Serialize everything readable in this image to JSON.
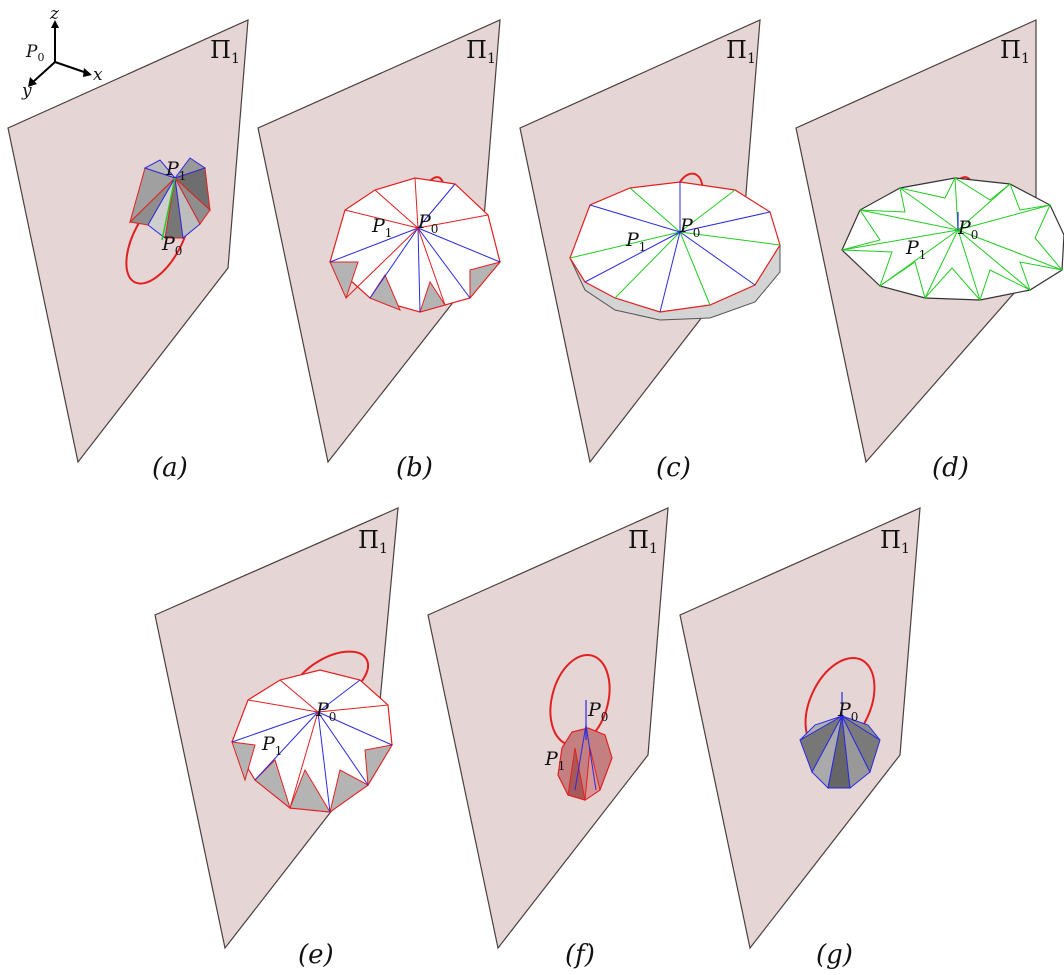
{
  "figure": {
    "panels": [
      {
        "id": "a",
        "caption": "(a)"
      },
      {
        "id": "b",
        "caption": "(b)"
      },
      {
        "id": "c",
        "caption": "(c)"
      },
      {
        "id": "d",
        "caption": "(d)"
      },
      {
        "id": "e",
        "caption": "(e)"
      },
      {
        "id": "f",
        "caption": "(f)"
      },
      {
        "id": "g",
        "caption": "(g)"
      }
    ],
    "plane_label": {
      "main": "Π",
      "sub": "1"
    },
    "points": {
      "p0": {
        "main": "P",
        "sub": "0"
      },
      "p1": {
        "main": "P",
        "sub": "1"
      }
    },
    "axes": {
      "z": "z",
      "x": "x",
      "y": "y",
      "origin_main": "P",
      "origin_sub": "0"
    }
  },
  "colors": {
    "plane_fill": "#e6d5d5",
    "mountain_fold": "#e32020",
    "valley_fold": "#2a2ae0",
    "flat_crease": "#22cc22",
    "face_light": "#ffffff",
    "face_dark": "#b4b4b4",
    "trajectory": "#e32020"
  }
}
